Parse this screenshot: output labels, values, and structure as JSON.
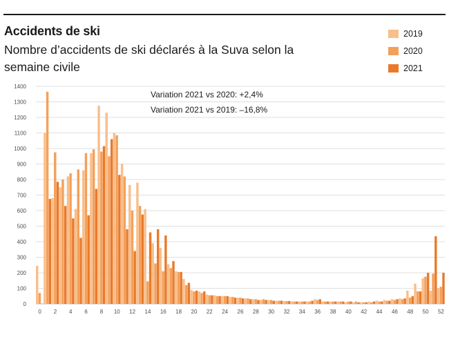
{
  "colors": {
    "s2019": "#f9be8a",
    "s2020": "#f3a05b",
    "s2021": "#e97a2a",
    "grid": "#d4d4d4",
    "text": "#1a1a1a"
  },
  "chart_data": {
    "type": "bar",
    "title": "Accidents de ski",
    "subtitle": "Nombre d’accidents de ski déclarés à la Suva selon la semaine civile",
    "xlabel": "",
    "ylabel": "",
    "ylim": [
      0,
      1400
    ],
    "yticks": [
      0,
      100,
      200,
      300,
      400,
      500,
      600,
      700,
      800,
      900,
      1000,
      1100,
      1200,
      1300,
      1400
    ],
    "x_tick_labels": [
      "0",
      "2",
      "4",
      "6",
      "8",
      "10",
      "12",
      "14",
      "16",
      "18",
      "20",
      "22",
      "24",
      "26",
      "28",
      "30",
      "32",
      "34",
      "36",
      "38",
      "40",
      "42",
      "44",
      "46",
      "48",
      "50",
      "52"
    ],
    "legend_position": "top-right",
    "grid": true,
    "annotations": [
      "Variation 2021 vs 2020: +2,4%",
      "Variation 2021 vs 2019: –16,8%"
    ],
    "categories": [
      0,
      1,
      2,
      3,
      4,
      5,
      6,
      7,
      8,
      9,
      10,
      11,
      12,
      13,
      14,
      15,
      16,
      17,
      18,
      19,
      20,
      21,
      22,
      23,
      24,
      25,
      26,
      27,
      28,
      29,
      30,
      31,
      32,
      33,
      34,
      35,
      36,
      37,
      38,
      39,
      40,
      41,
      42,
      43,
      44,
      45,
      46,
      47,
      48,
      49,
      50,
      51,
      52
    ],
    "series": [
      {
        "name": "2019",
        "values": [
          245,
          1100,
          680,
          750,
          820,
          610,
          860,
          970,
          1275,
          1230,
          1100,
          900,
          765,
          780,
          610,
          390,
          360,
          255,
          210,
          160,
          90,
          80,
          60,
          55,
          50,
          45,
          40,
          35,
          30,
          25,
          25,
          20,
          18,
          15,
          15,
          15,
          30,
          15,
          15,
          15,
          10,
          10,
          10,
          15,
          20,
          25,
          30,
          35,
          85,
          130,
          165,
          85,
          100
        ]
      },
      {
        "name": "2020",
        "values": [
          70,
          1365,
          975,
          800,
          840,
          865,
          970,
          995,
          980,
          950,
          1085,
          820,
          600,
          630,
          145,
          260,
          210,
          230,
          205,
          120,
          80,
          70,
          55,
          50,
          50,
          45,
          40,
          35,
          30,
          30,
          25,
          20,
          18,
          15,
          15,
          15,
          25,
          15,
          15,
          15,
          15,
          15,
          10,
          10,
          15,
          20,
          25,
          30,
          40,
          80,
          175,
          195,
          110
        ]
      },
      {
        "name": "2021",
        "values": [
          0,
          675,
          785,
          630,
          550,
          425,
          570,
          740,
          1015,
          1060,
          830,
          480,
          340,
          575,
          460,
          480,
          440,
          275,
          205,
          135,
          85,
          80,
          55,
          50,
          50,
          40,
          35,
          30,
          25,
          25,
          20,
          20,
          18,
          15,
          15,
          20,
          30,
          15,
          15,
          15,
          15,
          10,
          10,
          15,
          15,
          20,
          30,
          35,
          50,
          80,
          200,
          435,
          200
        ]
      }
    ]
  }
}
